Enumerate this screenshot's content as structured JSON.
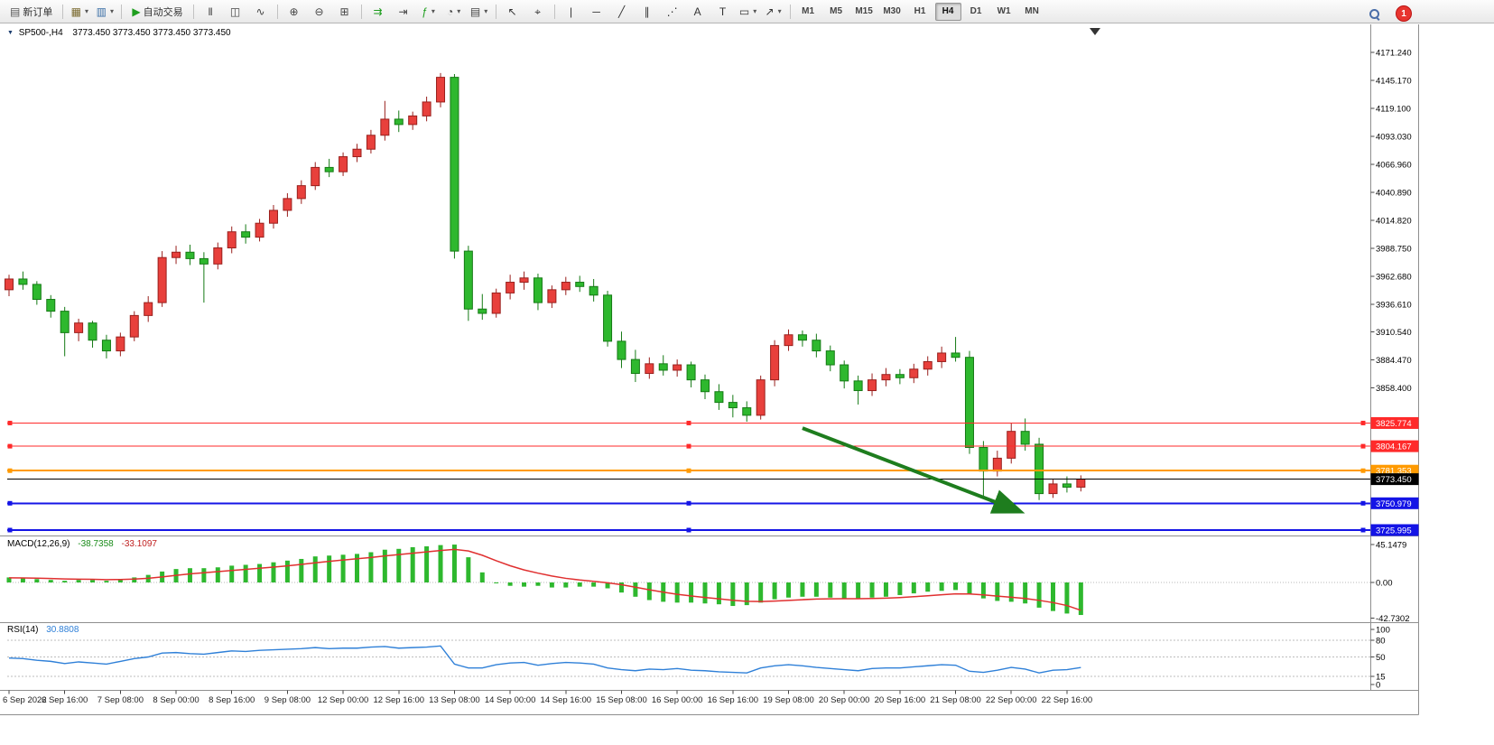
{
  "toolbar": {
    "groups": [
      [
        {
          "name": "new-order",
          "label": "新订单",
          "glyph": "▤",
          "color": "#555"
        }
      ],
      [
        {
          "name": "new-chart",
          "glyph": "▦",
          "color": "#7a6a2f",
          "caret": true
        },
        {
          "name": "profiles",
          "glyph": "▥",
          "color": "#3a6ea5",
          "caret": true
        }
      ],
      [
        {
          "name": "auto-trading",
          "label": "自动交易",
          "glyph": "▶",
          "color": "#1e9e1e"
        }
      ],
      [
        {
          "name": "bar-chart-mode",
          "glyph": "|||",
          "small": true,
          "color": "#444"
        },
        {
          "name": "candlestick-mode",
          "glyph": "◫",
          "color": "#444"
        },
        {
          "name": "line-chart-mode",
          "glyph": "∿",
          "color": "#444"
        }
      ],
      [
        {
          "name": "zoom-in",
          "glyph": "⊕",
          "color": "#444"
        },
        {
          "name": "zoom-out",
          "glyph": "⊖",
          "color": "#444"
        },
        {
          "name": "tile-windows",
          "glyph": "⊞",
          "color": "#444"
        }
      ],
      [
        {
          "name": "auto-scroll",
          "glyph": "⇉",
          "color": "#1e9e1e"
        },
        {
          "name": "chart-shift",
          "glyph": "⇥",
          "color": "#444"
        },
        {
          "name": "indicators",
          "glyph": "ƒ",
          "color": "#1e9e1e",
          "caret": true
        },
        {
          "name": "periods",
          "glyph": "◔",
          "color": "#444",
          "caret": true
        },
        {
          "name": "templates",
          "glyph": "▤",
          "color": "#444",
          "caret": true
        }
      ],
      [
        {
          "name": "cursor-tool",
          "glyph": "↖",
          "color": "#333"
        },
        {
          "name": "crosshair-tool",
          "glyph": "⌖",
          "color": "#333"
        }
      ],
      [
        {
          "name": "vertical-line-tool",
          "glyph": "|",
          "color": "#333"
        },
        {
          "name": "horizontal-line-tool",
          "glyph": "─",
          "color": "#333"
        },
        {
          "name": "trendline-tool",
          "glyph": "╱",
          "color": "#333"
        },
        {
          "name": "channel-tool",
          "glyph": "∥",
          "color": "#333"
        },
        {
          "name": "fibonacci-tool",
          "glyph": "⋰",
          "color": "#333"
        },
        {
          "name": "text-tool",
          "glyph": "A",
          "color": "#333"
        },
        {
          "name": "label-tool",
          "glyph": "T",
          "color": "#333"
        },
        {
          "name": "shapes-tool",
          "glyph": "▭",
          "color": "#333",
          "caret": true
        },
        {
          "name": "arrows-tool",
          "glyph": "↗",
          "color": "#333",
          "caret": true
        }
      ]
    ],
    "timeframes": [
      {
        "label": "M1"
      },
      {
        "label": "M5"
      },
      {
        "label": "M15"
      },
      {
        "label": "M30"
      },
      {
        "label": "H1"
      },
      {
        "label": "H4",
        "active": true
      },
      {
        "label": "D1"
      },
      {
        "label": "W1"
      },
      {
        "label": "MN"
      }
    ],
    "notification_count": "1"
  },
  "chart": {
    "symbol_period": "SP500-,H4",
    "ohlc_line": "3773.450 3773.450 3773.450 3773.450",
    "symbol_marker_glyph": "▼"
  },
  "chart_data": {
    "type": "candlestick",
    "symbol": "SP500-",
    "period": "H4",
    "colors": {
      "bull": "#e8403c",
      "bull_border": "#99201d",
      "bear": "#2eb82e",
      "bear_border": "#157a15",
      "macd_hist": "#2eb82e",
      "macd_signal": "#e03030",
      "rsi_line": "#2f80d8",
      "arrow": "#1e7d1e"
    },
    "price_ticks": [
      "4171.240",
      "4145.170",
      "4119.100",
      "4093.030",
      "4066.960",
      "4040.890",
      "4014.820",
      "3988.750",
      "3962.680",
      "3936.610",
      "3910.540",
      "3884.470",
      "3858.400"
    ],
    "time_labels": [
      "6 Sep 2022",
      "6 Sep 16:00",
      "7 Sep 08:00",
      "8 Sep 00:00",
      "8 Sep 16:00",
      "9 Sep 08:00",
      "12 Sep 00:00",
      "12 Sep 16:00",
      "13 Sep 08:00",
      "14 Sep 00:00",
      "14 Sep 16:00",
      "15 Sep 08:00",
      "16 Sep 00:00",
      "16 Sep 16:00",
      "19 Sep 08:00",
      "20 Sep 00:00",
      "20 Sep 16:00",
      "21 Sep 08:00",
      "22 Sep 00:00",
      "22 Sep 16:00"
    ],
    "bars_per_label": 4,
    "ohlc": [
      [
        3950,
        3964,
        3944,
        3960
      ],
      [
        3960,
        3967,
        3950,
        3955
      ],
      [
        3955,
        3958,
        3936,
        3941
      ],
      [
        3941,
        3945,
        3924,
        3930
      ],
      [
        3930,
        3934,
        3888,
        3910
      ],
      [
        3910,
        3923,
        3902,
        3919
      ],
      [
        3919,
        3921,
        3896,
        3903
      ],
      [
        3903,
        3908,
        3886,
        3893
      ],
      [
        3893,
        3910,
        3888,
        3906
      ],
      [
        3906,
        3930,
        3902,
        3926
      ],
      [
        3926,
        3944,
        3920,
        3938
      ],
      [
        3938,
        3986,
        3934,
        3980
      ],
      [
        3980,
        3991,
        3974,
        3985
      ],
      [
        3985,
        3992,
        3973,
        3979
      ],
      [
        3979,
        3985,
        3938,
        3974
      ],
      [
        3974,
        3994,
        3969,
        3989
      ],
      [
        3989,
        4009,
        3984,
        4004
      ],
      [
        4004,
        4011,
        3993,
        3999
      ],
      [
        3999,
        4016,
        3995,
        4012
      ],
      [
        4012,
        4029,
        4007,
        4024
      ],
      [
        4024,
        4040,
        4018,
        4035
      ],
      [
        4035,
        4052,
        4030,
        4047
      ],
      [
        4047,
        4069,
        4043,
        4064
      ],
      [
        4064,
        4072,
        4055,
        4060
      ],
      [
        4060,
        4078,
        4056,
        4074
      ],
      [
        4074,
        4086,
        4069,
        4081
      ],
      [
        4081,
        4099,
        4077,
        4094
      ],
      [
        4094,
        4126,
        4089,
        4109
      ],
      [
        4109,
        4117,
        4097,
        4104
      ],
      [
        4104,
        4116,
        4099,
        4112
      ],
      [
        4112,
        4130,
        4107,
        4125
      ],
      [
        4125,
        4152,
        4120,
        4148
      ],
      [
        4148,
        4151,
        3979,
        3986
      ],
      [
        3986,
        3991,
        3921,
        3932
      ],
      [
        3932,
        3946,
        3922,
        3928
      ],
      [
        3928,
        3951,
        3924,
        3947
      ],
      [
        3947,
        3964,
        3941,
        3957
      ],
      [
        3957,
        3967,
        3950,
        3961
      ],
      [
        3961,
        3965,
        3931,
        3938
      ],
      [
        3938,
        3954,
        3933,
        3950
      ],
      [
        3950,
        3962,
        3945,
        3957
      ],
      [
        3957,
        3963,
        3948,
        3953
      ],
      [
        3953,
        3960,
        3939,
        3945
      ],
      [
        3945,
        3949,
        3897,
        3902
      ],
      [
        3902,
        3911,
        3877,
        3885
      ],
      [
        3885,
        3894,
        3864,
        3872
      ],
      [
        3872,
        3887,
        3867,
        3881
      ],
      [
        3881,
        3889,
        3870,
        3875
      ],
      [
        3875,
        3885,
        3869,
        3880
      ],
      [
        3880,
        3883,
        3859,
        3866
      ],
      [
        3866,
        3871,
        3848,
        3855
      ],
      [
        3855,
        3862,
        3838,
        3845
      ],
      [
        3845,
        3852,
        3831,
        3840
      ],
      [
        3840,
        3846,
        3827,
        3833
      ],
      [
        3833,
        3870,
        3829,
        3866
      ],
      [
        3866,
        3903,
        3860,
        3898
      ],
      [
        3898,
        3913,
        3893,
        3908
      ],
      [
        3908,
        3912,
        3897,
        3903
      ],
      [
        3903,
        3909,
        3887,
        3893
      ],
      [
        3893,
        3898,
        3874,
        3880
      ],
      [
        3880,
        3884,
        3858,
        3865
      ],
      [
        3865,
        3870,
        3843,
        3856
      ],
      [
        3856,
        3872,
        3851,
        3866
      ],
      [
        3866,
        3877,
        3860,
        3871
      ],
      [
        3871,
        3876,
        3862,
        3868
      ],
      [
        3868,
        3881,
        3863,
        3876
      ],
      [
        3876,
        3888,
        3870,
        3883
      ],
      [
        3883,
        3897,
        3877,
        3891
      ],
      [
        3891,
        3906,
        3883,
        3887
      ],
      [
        3887,
        3893,
        3797,
        3803
      ],
      [
        3803,
        3809,
        3757,
        3781
      ],
      [
        3781,
        3800,
        3776,
        3793
      ],
      [
        3793,
        3826,
        3788,
        3818
      ],
      [
        3818,
        3830,
        3800,
        3806
      ],
      [
        3806,
        3812,
        3754,
        3760
      ],
      [
        3760,
        3773,
        3756,
        3769
      ],
      [
        3769,
        3776,
        3761,
        3766
      ],
      [
        3766,
        3777,
        3762,
        3773.45
      ]
    ],
    "price_lines": [
      {
        "price": 3825.774,
        "label": "3825.774",
        "color": "#ff2a2a",
        "width": 1
      },
      {
        "price": 3804.167,
        "label": "3804.167",
        "color": "#ff2a2a",
        "width": 1
      },
      {
        "price": 3781.353,
        "label": "3781.353",
        "color": "#ff9a00",
        "width": 2
      },
      {
        "price": 3750.979,
        "label": "3750.979",
        "color": "#1414e6",
        "width": 2
      },
      {
        "price": 3725.995,
        "label": "3725.995",
        "color": "#1414e6",
        "width": 2
      }
    ],
    "current_price": {
      "value": 3773.45,
      "label": "3773.450",
      "color": "#000000"
    },
    "arrow": {
      "from": {
        "bar": 57,
        "price": 3821
      },
      "to": {
        "bar": 72.5,
        "price": 3744
      }
    },
    "macd": {
      "name": "MACD(12,26,9)",
      "main_value": "-38.7358",
      "signal_value": "-33.1097",
      "scale": [
        {
          "v": 45.1479,
          "label": "45.1479"
        },
        {
          "v": 0,
          "label": "0.00"
        },
        {
          "v": -42.7302,
          "label": "-42.7302"
        }
      ],
      "hist": [
        6,
        5,
        4,
        3,
        2,
        3,
        3,
        2,
        4,
        6,
        9,
        13,
        16,
        17,
        17,
        18,
        20,
        21,
        22,
        24,
        26,
        28,
        31,
        32,
        33,
        34,
        36,
        39,
        40,
        42,
        43,
        44.5,
        45.1,
        30,
        12,
        0,
        -4,
        -5,
        -4,
        -6,
        -6,
        -5,
        -5,
        -7,
        -12,
        -17,
        -21,
        -23,
        -24,
        -24,
        -25,
        -26,
        -28,
        -27,
        -24,
        -20,
        -18,
        -17,
        -17,
        -18,
        -19,
        -19,
        -18,
        -17,
        -15,
        -13,
        -11,
        -10,
        -9,
        -14,
        -19,
        -22,
        -23,
        -25,
        -30,
        -34,
        -37,
        -38.74
      ],
      "signal": [
        5.5,
        5.4,
        5.1,
        4.7,
        4.2,
        3.9,
        3.7,
        3.4,
        3.5,
        4.0,
        5.0,
        6.6,
        8.5,
        10.2,
        11.6,
        12.9,
        14.3,
        15.6,
        16.9,
        18.3,
        19.8,
        21.5,
        23.4,
        25.1,
        26.7,
        28.2,
        29.7,
        31.6,
        33.2,
        34.8,
        36.4,
        38.0,
        39.4,
        37.5,
        32.4,
        25.9,
        19.9,
        14.9,
        11.1,
        7.7,
        4.9,
        2.9,
        1.3,
        -0.4,
        -2.7,
        -5.6,
        -8.7,
        -11.6,
        -14.1,
        -16.1,
        -17.9,
        -19.5,
        -21.2,
        -22.4,
        -22.7,
        -22.2,
        -21.4,
        -20.5,
        -19.8,
        -19.5,
        -19.4,
        -19.3,
        -19.1,
        -18.7,
        -18.0,
        -17.0,
        -15.8,
        -14.7,
        -13.6,
        -13.7,
        -14.8,
        -16.2,
        -17.6,
        -19.1,
        -21.3,
        -24.0,
        -27.5,
        -33.11
      ]
    },
    "rsi": {
      "name": "RSI(14)",
      "value": "30.8808",
      "levels": [
        {
          "v": 100,
          "label": "100",
          "line": false
        },
        {
          "v": 80,
          "label": "80",
          "line": true
        },
        {
          "v": 50,
          "label": "50",
          "line": true
        },
        {
          "v": 15,
          "label": "15",
          "line": true
        },
        {
          "v": 0,
          "label": "0",
          "line": false
        }
      ],
      "values": [
        48,
        47,
        44,
        42,
        38,
        41,
        39,
        37,
        42,
        47,
        50,
        57,
        58,
        56,
        55,
        58,
        61,
        60,
        62,
        63,
        64,
        65,
        67,
        65,
        66,
        66,
        68,
        69,
        66,
        67,
        68,
        70,
        37,
        30,
        30,
        36,
        39,
        40,
        35,
        38,
        40,
        39,
        37,
        30,
        27,
        25,
        28,
        27,
        29,
        26,
        25,
        23,
        22,
        21,
        30,
        34,
        36,
        34,
        31,
        29,
        27,
        25,
        29,
        30,
        30,
        32,
        34,
        36,
        35,
        24,
        22,
        26,
        31,
        28,
        21,
        26,
        27,
        30.88
      ]
    }
  }
}
